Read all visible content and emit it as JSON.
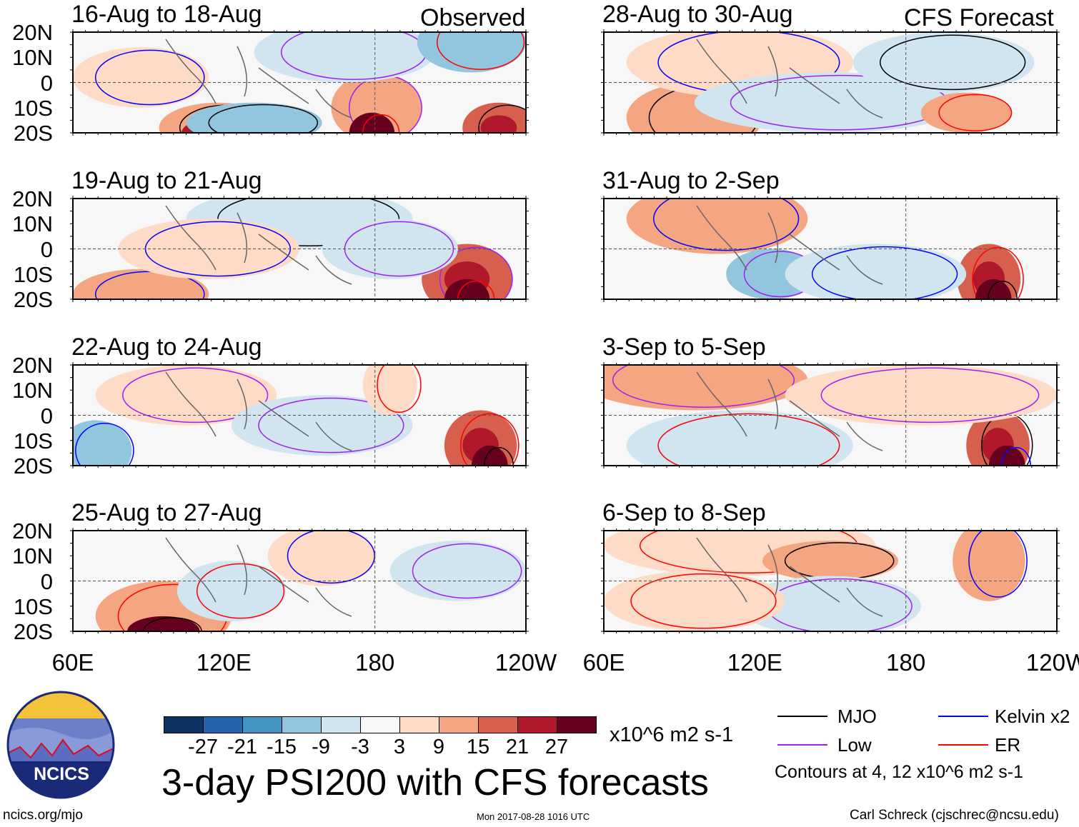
{
  "header": {
    "observed_label": "Observed",
    "forecast_label": "CFS Forecast"
  },
  "panels_left": [
    {
      "title": "16-Aug to 18-Aug"
    },
    {
      "title": "19-Aug to 21-Aug"
    },
    {
      "title": "22-Aug to 24-Aug"
    },
    {
      "title": "25-Aug to 27-Aug"
    }
  ],
  "panels_right": [
    {
      "title": "28-Aug to 30-Aug"
    },
    {
      "title": "31-Aug to 2-Sep"
    },
    {
      "title": "3-Sep to 5-Sep"
    },
    {
      "title": "6-Sep to 8-Sep"
    }
  ],
  "lat_labels": [
    "20N",
    "10N",
    "0",
    "10S",
    "20S"
  ],
  "lon_labels": [
    "60E",
    "120E",
    "180",
    "120W"
  ],
  "colorbar": {
    "colors": [
      "#0b3463",
      "#2265ad",
      "#4393c3",
      "#92c5de",
      "#d1e5f0",
      "#f7f7f7",
      "#fddbc7",
      "#f4a582",
      "#d6604d",
      "#b2182b",
      "#67001f"
    ],
    "labels": [
      "-27",
      "-21",
      "-15",
      "-9",
      "-3",
      "3",
      "9",
      "15",
      "21",
      "27"
    ],
    "units": "x10^6 m2 s-1"
  },
  "title": "3-day PSI200 with CFS forecasts",
  "timestamp": "Mon 2017-08-28 1016 UTC",
  "legend": {
    "items": [
      {
        "label": "MJO",
        "color": "#000000"
      },
      {
        "label": "Kelvin x2",
        "color": "#0000ff"
      },
      {
        "label": "Low",
        "color": "#a020f0"
      },
      {
        "label": "ER",
        "color": "#ff0000"
      }
    ],
    "note": "Contours at 4, 12 x10^6 m2 s-1"
  },
  "logo": {
    "text": "NCICS"
  },
  "footer": {
    "url": "ncics.org/mjo",
    "credit": "Carl Schreck (cjschrec@ncsu.edu)"
  }
}
